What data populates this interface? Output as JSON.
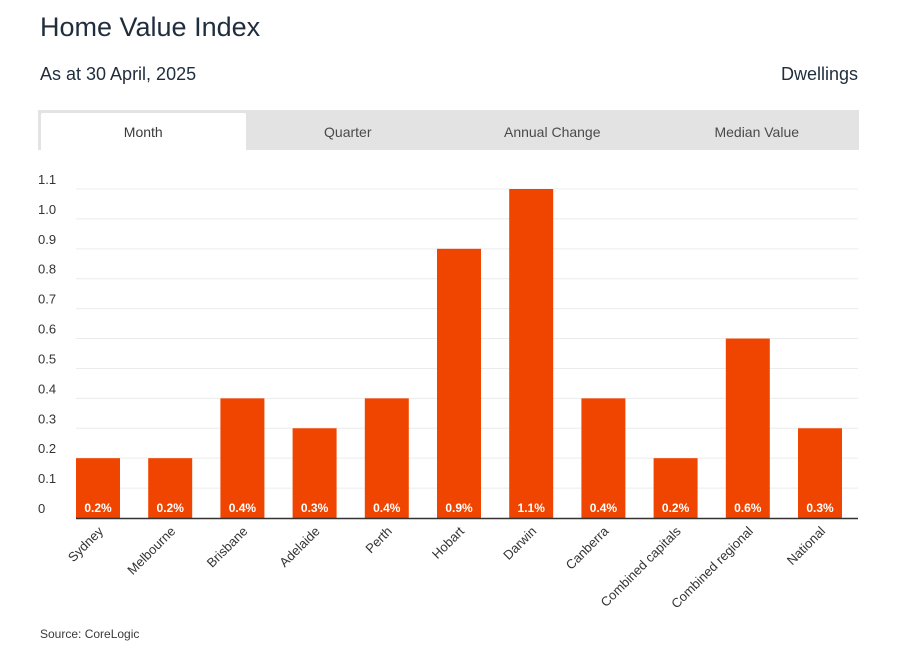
{
  "header": {
    "title": "Home Value Index",
    "subtitle": "As at 30 April, 2025",
    "dwelling_type": "Dwellings"
  },
  "tabs": [
    {
      "label": "Month",
      "active": true
    },
    {
      "label": "Quarter",
      "active": false
    },
    {
      "label": "Annual Change",
      "active": false
    },
    {
      "label": "Median Value",
      "active": false
    }
  ],
  "source": "Source: CoreLogic",
  "colors": {
    "bar": "#f04500",
    "grid": "#ececec",
    "axis": "#333333"
  },
  "chart_data": {
    "type": "bar",
    "categories": [
      "Sydney",
      "Melbourne",
      "Brisbane",
      "Adelaide",
      "Perth",
      "Hobart",
      "Darwin",
      "Canberra",
      "Combined capitals",
      "Combined regional",
      "National"
    ],
    "values": [
      0.2,
      0.2,
      0.4,
      0.3,
      0.4,
      0.9,
      1.1,
      0.4,
      0.2,
      0.6,
      0.3
    ],
    "data_labels": [
      "0.2%",
      "0.2%",
      "0.4%",
      "0.3%",
      "0.4%",
      "0.9%",
      "1.1%",
      "0.4%",
      "0.2%",
      "0.6%",
      "0.3%"
    ],
    "yticks": [
      "0",
      "0.1",
      "0.2",
      "0.3",
      "0.4",
      "0.5",
      "0.6",
      "0.7",
      "0.8",
      "0.9",
      "1.0",
      "1.1"
    ],
    "ylim": [
      0,
      1.1
    ],
    "grid": true
  }
}
